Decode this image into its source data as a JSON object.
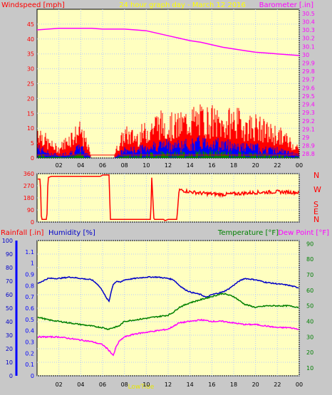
{
  "header": {
    "left_title": "Windspeed [mph]",
    "center_title": "24 hour graph day - March 12 2016",
    "right_title": "Barometer [.in]"
  },
  "bottom_header": {
    "rainfall": "Rainfall [.in]",
    "humidity": "Humidity [%]",
    "temperature": "Temperature [°F]",
    "dewpoint": "Dew Point [°F]"
  },
  "direction_labels": [
    "N",
    "W",
    "S",
    "E",
    "N"
  ],
  "colors": {
    "plot_bg": "#ffffc0",
    "grid": "#b4c8ff",
    "wind": "#ff0000",
    "wind_avg": "#0000ff",
    "wind_low": "#008000",
    "barometer": "#ff00ff",
    "direction": "#ff0000",
    "humidity": "#0000c8",
    "temperature": "#008000",
    "dewpoint": "#ff00ff",
    "rainfall_axis": "#0000ff",
    "windspeed_axis": "#ff0000",
    "footer_text": "#e6e600",
    "center_title": "#ffff00"
  },
  "footer": {
    "lowtide_label": "LowTide"
  },
  "chart_data": [
    {
      "type": "line",
      "title": "24 hour graph day - March 12 2016",
      "x_tick_labels": [
        "02",
        "04",
        "06",
        "08",
        "10",
        "12",
        "14",
        "16",
        "18",
        "20",
        "22",
        "00"
      ],
      "y_left_label": "Windspeed [mph]",
      "y_left_ticks": [
        "0",
        "5",
        "10",
        "15",
        "20",
        "25",
        "30",
        "35",
        "40",
        "45"
      ],
      "y_left_range": [
        0,
        50
      ],
      "y_right_label": "Barometer [.in]",
      "y_right_ticks": [
        "28.8",
        "28.9",
        "29",
        "29.1",
        "29.2",
        "29.3",
        "29.4",
        "29.5",
        "29.6",
        "29.7",
        "29.8",
        "29.9",
        "30",
        "30.1",
        "30.2",
        "30.3",
        "30.4",
        "30.5"
      ],
      "y_right_range": [
        28.75,
        30.55
      ],
      "barometer_series": {
        "x_hours": [
          0,
          1,
          2,
          3,
          4,
          5,
          6,
          7,
          8,
          9,
          10,
          11,
          12,
          13,
          14,
          15,
          16,
          17,
          18,
          19,
          20,
          21,
          22,
          23,
          24
        ],
        "values": [
          30.3,
          30.31,
          30.32,
          30.32,
          30.32,
          30.32,
          30.31,
          30.31,
          30.31,
          30.3,
          30.29,
          30.26,
          30.23,
          30.2,
          30.17,
          30.15,
          30.12,
          30.09,
          30.07,
          30.05,
          30.03,
          30.02,
          30.01,
          30.0,
          29.99
        ]
      },
      "wind_gust_profile": {
        "x_hours": [
          0,
          1,
          2,
          3,
          4,
          5,
          6,
          7,
          8,
          9,
          10,
          11,
          12,
          13,
          14,
          15,
          16,
          17,
          18,
          19,
          20,
          21,
          22,
          23,
          24
        ],
        "values": [
          10,
          5,
          3,
          7,
          9,
          1,
          1,
          1,
          8,
          7,
          9,
          12,
          11,
          11,
          13,
          13,
          13,
          11,
          13,
          11,
          11,
          9,
          8,
          6,
          3
        ]
      },
      "wind_avg_profile": {
        "x_hours": [
          0,
          1,
          2,
          3,
          4,
          5,
          6,
          7,
          8,
          9,
          10,
          11,
          12,
          13,
          14,
          15,
          16,
          17,
          18,
          19,
          20,
          21,
          22,
          23,
          24
        ],
        "values": [
          4,
          2,
          1,
          2,
          4,
          0,
          0,
          0,
          3,
          3,
          4,
          5,
          5,
          5,
          5,
          6,
          6,
          5,
          5,
          4,
          4,
          3,
          3,
          2,
          1
        ]
      }
    },
    {
      "type": "line",
      "title": "",
      "y_ticks": [
        "0",
        "90",
        "180",
        "270",
        "360"
      ],
      "y_range": [
        0,
        360
      ],
      "direction_series": {
        "x_hours": [
          0,
          0.3,
          0.4,
          0.9,
          1.0,
          1.3,
          5.8,
          6.0,
          6.6,
          6.7,
          7.2,
          10.4,
          10.5,
          10.7,
          10.9,
          11.0,
          11.6,
          11.7,
          12.0,
          12.8,
          13.0,
          14,
          15,
          16,
          17,
          18,
          19,
          20,
          21,
          22,
          23,
          24
        ],
        "values": [
          320,
          320,
          20,
          20,
          330,
          340,
          340,
          350,
          350,
          20,
          20,
          20,
          330,
          20,
          20,
          20,
          20,
          10,
          20,
          20,
          240,
          225,
          215,
          210,
          205,
          210,
          215,
          220,
          222,
          225,
          222,
          220
        ]
      }
    },
    {
      "type": "line",
      "title": "",
      "y_left_label": "Rainfall [.in]",
      "y_left_ticks": [
        "0",
        "0.1",
        "0.2",
        "0.3",
        "0.4",
        "0.5",
        "0.6",
        "0.7",
        "0.8",
        "0.9",
        "1",
        "1.1"
      ],
      "y_left_range": [
        0,
        1.2
      ],
      "y_humidity_label": "Humidity [%]",
      "y_humidity_ticks": [
        "0",
        "10",
        "20",
        "30",
        "40",
        "50",
        "60",
        "70",
        "80",
        "90",
        "100"
      ],
      "y_humidity_range": [
        0,
        100
      ],
      "y_right_label": "Temperature [°F]",
      "y_right_ticks": [
        "10",
        "20",
        "30",
        "40",
        "50",
        "60",
        "70",
        "80",
        "90"
      ],
      "y_right_range": [
        5,
        92
      ],
      "series": [
        {
          "name": "Humidity [%]",
          "x_hours": [
            0,
            1,
            2,
            3,
            4,
            5,
            5.5,
            6,
            6.3,
            6.6,
            6.8,
            7.0,
            7.3,
            7.6,
            8,
            9,
            10,
            11,
            12,
            12.5,
            13,
            13.5,
            14,
            15,
            15.5,
            16,
            17,
            17.5,
            18,
            18.5,
            19,
            20,
            21,
            22,
            23,
            24
          ],
          "values": [
            68,
            72,
            72,
            73,
            72,
            71,
            68,
            63,
            58,
            55,
            63,
            68,
            70,
            69,
            71,
            72,
            73,
            73,
            72,
            71,
            67,
            64,
            62,
            60,
            58,
            60,
            62,
            64,
            67,
            70,
            72,
            71,
            69,
            68,
            67,
            65
          ]
        },
        {
          "name": "Temperature [°F]",
          "x_hours": [
            0,
            1,
            2,
            3,
            4,
            5,
            6,
            6.5,
            7,
            7.5,
            8,
            9,
            10,
            11,
            12,
            12.5,
            13,
            14,
            15,
            16,
            17,
            18,
            19,
            20,
            21,
            22,
            23,
            24
          ],
          "values": [
            43,
            41,
            40,
            39,
            38,
            37,
            36,
            35,
            36,
            37,
            40,
            41,
            42,
            43,
            44,
            46,
            49,
            52,
            54,
            56,
            58,
            56,
            51,
            49,
            50,
            50,
            50,
            49
          ]
        },
        {
          "name": "Dew Point [°F]",
          "x_hours": [
            0,
            1,
            2,
            3,
            4,
            5,
            6,
            6.5,
            7.0,
            7.2,
            7.5,
            8,
            9,
            10,
            11,
            12,
            12.5,
            13,
            14,
            15,
            16,
            17,
            18,
            19,
            20,
            21,
            22,
            23,
            24
          ],
          "values": [
            30,
            30,
            30,
            29,
            28,
            27,
            25,
            22,
            18,
            23,
            27,
            30,
            32,
            33,
            34,
            35,
            37,
            39,
            40,
            41,
            40,
            40,
            39,
            38,
            38,
            37,
            36,
            36,
            35
          ]
        }
      ]
    }
  ]
}
